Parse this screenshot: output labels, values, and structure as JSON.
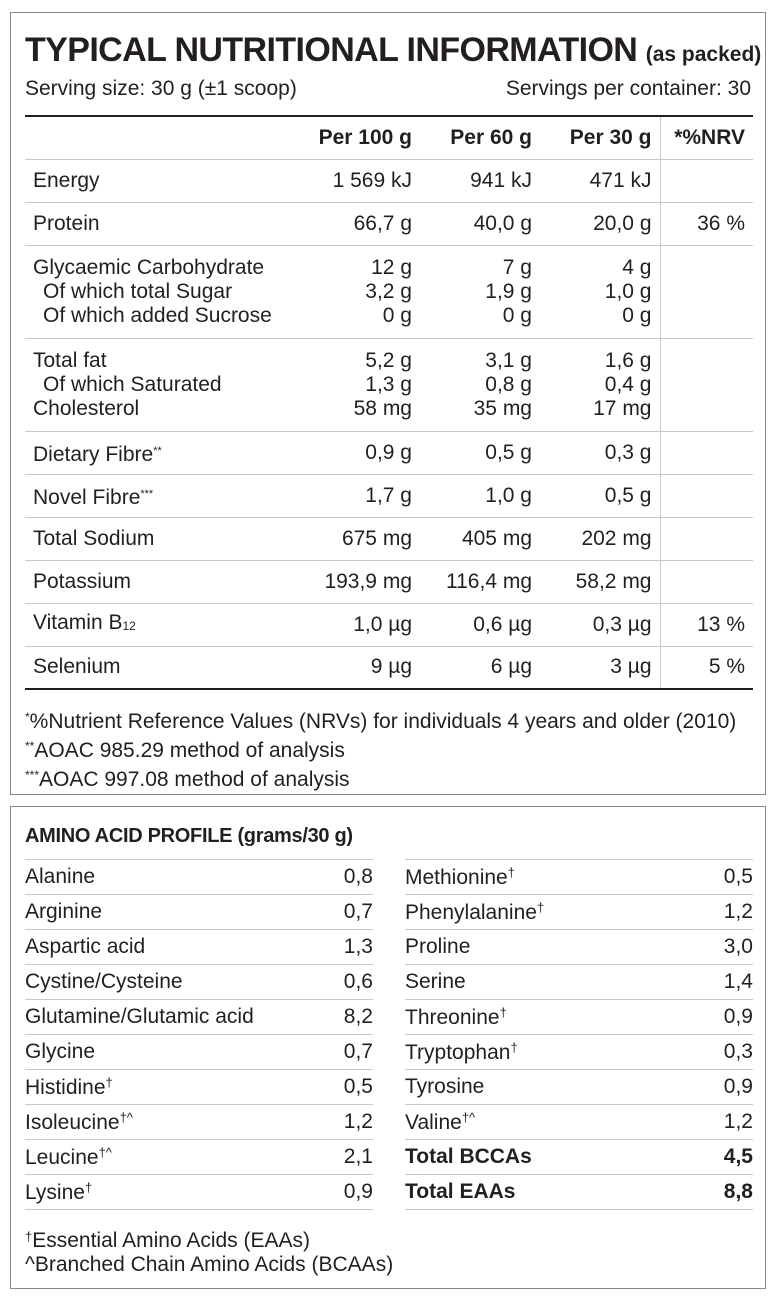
{
  "nutrition": {
    "title": "TYPICAL NUTRITIONAL INFORMATION",
    "title_suffix": "(as packed)",
    "serving_size": "Serving size: 30 g (±1 scoop)",
    "servings_per_container": "Servings per container: 30",
    "columns": [
      "Per 100 g",
      "Per 60 g",
      "Per 30 g",
      "*%NRV"
    ],
    "rows": {
      "energy": {
        "label": "Energy",
        "per100": "1 569 kJ",
        "per60": "941 kJ",
        "per30": "471 kJ",
        "nrv": ""
      },
      "protein": {
        "label": "Protein",
        "per100": "66,7 g",
        "per60": "40,0 g",
        "per30": "20,0 g",
        "nrv": "36 %"
      },
      "carb": {
        "label1": "Glycaemic Carbohydrate",
        "label2": "Of which total Sugar",
        "label3": "Of which added Sucrose",
        "per100_1": "12 g",
        "per100_2": "3,2 g",
        "per100_3": "0 g",
        "per60_1": "7 g",
        "per60_2": "1,9 g",
        "per60_3": "0 g",
        "per30_1": "4 g",
        "per30_2": "1,0 g",
        "per30_3": "0 g"
      },
      "fat": {
        "label1": "Total fat",
        "label2": "Of which Saturated",
        "label3": "Cholesterol",
        "per100_1": "5,2 g",
        "per100_2": "1,3 g",
        "per100_3": "58 mg",
        "per60_1": "3,1 g",
        "per60_2": "0,8 g",
        "per60_3": "35 mg",
        "per30_1": "1,6 g",
        "per30_2": "0,4 g",
        "per30_3": "17 mg"
      },
      "dietary_fibre": {
        "label": "Dietary Fibre",
        "marker": "**",
        "per100": "0,9 g",
        "per60": "0,5 g",
        "per30": "0,3 g",
        "nrv": ""
      },
      "novel_fibre": {
        "label": "Novel Fibre",
        "marker": "***",
        "per100": "1,7 g",
        "per60": "1,0 g",
        "per30": "0,5 g",
        "nrv": ""
      },
      "sodium": {
        "label": "Total Sodium",
        "per100": "675 mg",
        "per60": "405 mg",
        "per30": "202 mg",
        "nrv": ""
      },
      "potassium": {
        "label": "Potassium",
        "per100": "193,9 mg",
        "per60": "116,4 mg",
        "per30": "58,2 mg",
        "nrv": ""
      },
      "vitamin_b12": {
        "label": "Vitamin B",
        "subscript": "12",
        "per100": "1,0 µg",
        "per60": "0,6 µg",
        "per30": "0,3 µg",
        "nrv": "13 %"
      },
      "selenium": {
        "label": "Selenium",
        "per100": "9 µg",
        "per60": "6 µg",
        "per30": "3 µg",
        "nrv": "5 %"
      }
    },
    "footnotes": [
      {
        "marker": "*",
        "text": "%Nutrient Reference Values (NRVs) for individuals 4 years and older (2010)"
      },
      {
        "marker": "**",
        "text": "AOAC 985.29 method of analysis"
      },
      {
        "marker": "***",
        "text": "AOAC 997.08 method of analysis"
      }
    ]
  },
  "amino": {
    "title": "AMINO ACID PROFILE (grams/30 g)",
    "left": [
      {
        "name": "Alanine",
        "mark": "",
        "value": "0,8"
      },
      {
        "name": "Arginine",
        "mark": "",
        "value": "0,7"
      },
      {
        "name": "Aspartic acid",
        "mark": "",
        "value": "1,3"
      },
      {
        "name": "Cystine/Cysteine",
        "mark": "",
        "value": "0,6"
      },
      {
        "name": "Glutamine/Glutamic acid",
        "mark": "",
        "value": "8,2"
      },
      {
        "name": "Glycine",
        "mark": "",
        "value": "0,7"
      },
      {
        "name": "Histidine",
        "mark": "†",
        "value": "0,5"
      },
      {
        "name": "Isoleucine",
        "mark": "†^",
        "value": "1,2"
      },
      {
        "name": "Leucine",
        "mark": "†^",
        "value": "2,1"
      },
      {
        "name": "Lysine",
        "mark": "†",
        "value": "0,9"
      }
    ],
    "right": [
      {
        "name": "Methionine",
        "mark": "†",
        "value": "0,5"
      },
      {
        "name": "Phenylalanine",
        "mark": "†",
        "value": "1,2"
      },
      {
        "name": "Proline",
        "mark": "",
        "value": "3,0"
      },
      {
        "name": "Serine",
        "mark": "",
        "value": "1,4"
      },
      {
        "name": "Threonine",
        "mark": "†",
        "value": "0,9"
      },
      {
        "name": "Tryptophan",
        "mark": "†",
        "value": "0,3"
      },
      {
        "name": "Tyrosine",
        "mark": "",
        "value": "0,9"
      },
      {
        "name": "Valine",
        "mark": "†^",
        "value": "1,2"
      },
      {
        "name": "Total BCCAs",
        "mark": "",
        "value": "4,5"
      },
      {
        "name": "Total EAAs",
        "mark": "",
        "value": "8,8"
      }
    ],
    "notes": [
      {
        "marker": "†",
        "text": "Essential Amino Acids (EAAs)"
      },
      {
        "marker": "",
        "text": "^Branched Chain Amino Acids (BCAAs)"
      }
    ]
  }
}
